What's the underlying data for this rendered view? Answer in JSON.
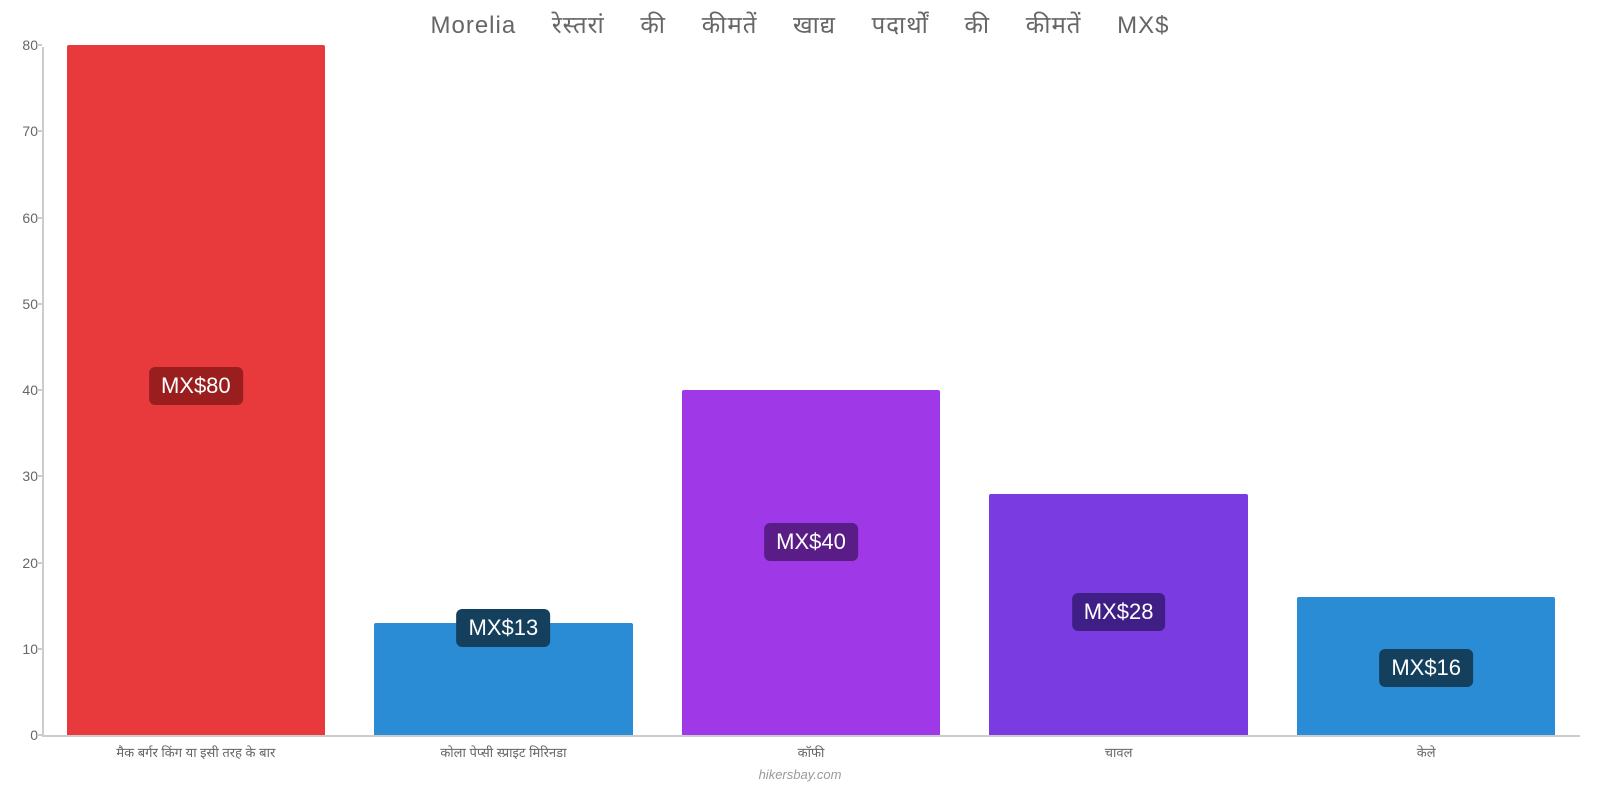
{
  "chart": {
    "type": "bar",
    "title": "Morelia रेस्तरां की कीमतें खाद्य पदार्थों की कीमतें MX$",
    "title_fontsize": 24,
    "title_color": "#666666",
    "background_color": "#ffffff",
    "axis_color": "#cccccc",
    "tick_label_color": "#666666",
    "tick_label_fontsize": 14,
    "x_label_fontsize": 13,
    "ylim": [
      0,
      80
    ],
    "ytick_step": 10,
    "yticks": [
      0,
      10,
      20,
      30,
      40,
      50,
      60,
      70,
      80
    ],
    "bar_width_ratio": 0.84,
    "categories": [
      "मैक बर्गर किंग या इसी तरह के बार",
      "कोला पेप्सी स्प्राइट मिरिनडा",
      "कॉफी",
      "चावल",
      "केले"
    ],
    "values": [
      80,
      13,
      40,
      28,
      16
    ],
    "value_labels": [
      "MX$80",
      "MX$13",
      "MX$40",
      "MX$28",
      "MX$16"
    ],
    "bar_colors": [
      "#e8393c",
      "#2b8cd6",
      "#9f39e8",
      "#7a3be0",
      "#2b8cd6"
    ],
    "label_badge_colors": [
      "#9a1e1e",
      "#14405e",
      "#5a1d87",
      "#3f1f85",
      "#14405e"
    ],
    "label_text_color": "#ffffff",
    "label_fontsize": 22,
    "source": "hikersbay.com",
    "source_color": "#999999"
  }
}
